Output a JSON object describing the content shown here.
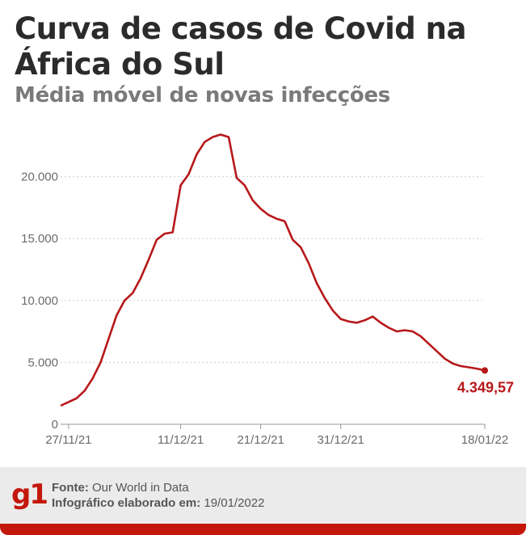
{
  "header": {
    "title": "Curva de casos de Covid na África do Sul",
    "subtitle": "Média móvel de novas infecções"
  },
  "footer": {
    "logo": "g1",
    "source_label": "Fonte:",
    "source_value": "Our World in Data",
    "credit_label": "Infográfico elaborado em:",
    "credit_value": "19/01/2022"
  },
  "colors": {
    "line": "#b7181a",
    "brand": "#c4170c",
    "axis_text": "#6b6b6b",
    "grid": "#cfcfcf"
  },
  "chart_data": {
    "type": "line",
    "title": "Curva de casos de Covid na África do Sul",
    "subtitle": "Média móvel de novas infecções",
    "xlabel": "",
    "ylabel": "",
    "ylim": [
      0,
      25000
    ],
    "yticks": [
      0,
      5000,
      10000,
      15000,
      20000
    ],
    "ytick_labels": [
      "0",
      "5.000",
      "10.000",
      "15.000",
      "20.000"
    ],
    "xticks": [
      "2021-11-27",
      "2021-12-11",
      "2021-12-21",
      "2021-12-31",
      "2022-01-18"
    ],
    "xtick_labels": [
      "27/11/21",
      "11/12/21",
      "21/12/21",
      "31/12/21",
      "18/01/22"
    ],
    "xlim": [
      "2021-11-26",
      "2022-01-18"
    ],
    "grid": "horizontal dotted",
    "end_label": "4.349,57",
    "series": [
      {
        "x": [
          "2021-11-26",
          "2021-11-27",
          "2021-11-28",
          "2021-11-29",
          "2021-11-30",
          "2021-12-01",
          "2021-12-02",
          "2021-12-03",
          "2021-12-04",
          "2021-12-05",
          "2021-12-06",
          "2021-12-07",
          "2021-12-08",
          "2021-12-09",
          "2021-12-10",
          "2021-12-11",
          "2021-12-12",
          "2021-12-13",
          "2021-12-14",
          "2021-12-15",
          "2021-12-16",
          "2021-12-17",
          "2021-12-18",
          "2021-12-19",
          "2021-12-20",
          "2021-12-21",
          "2021-12-22",
          "2021-12-23",
          "2021-12-24",
          "2021-12-25",
          "2021-12-26",
          "2021-12-27",
          "2021-12-28",
          "2021-12-29",
          "2021-12-30",
          "2021-12-31",
          "2022-01-01",
          "2022-01-02",
          "2022-01-03",
          "2022-01-04",
          "2022-01-05",
          "2022-01-06",
          "2022-01-07",
          "2022-01-08",
          "2022-01-09",
          "2022-01-10",
          "2022-01-11",
          "2022-01-12",
          "2022-01-13",
          "2022-01-14",
          "2022-01-15",
          "2022-01-16",
          "2022-01-17",
          "2022-01-18"
        ],
        "y": [
          1500,
          1800,
          2100,
          2700,
          3700,
          5000,
          6900,
          8800,
          10000,
          10600,
          11800,
          13300,
          14900,
          15400,
          15500,
          19300,
          20200,
          21800,
          22800,
          23200,
          23400,
          23200,
          19900,
          19300,
          18100,
          17400,
          16900,
          16600,
          16400,
          14900,
          14300,
          13000,
          11400,
          10200,
          9200,
          8500,
          8300,
          8200,
          8400,
          8700,
          8200,
          7800,
          7500,
          7600,
          7500,
          7100,
          6500,
          5900,
          5300,
          4900,
          4700,
          4600,
          4500,
          4349.57
        ]
      }
    ]
  }
}
